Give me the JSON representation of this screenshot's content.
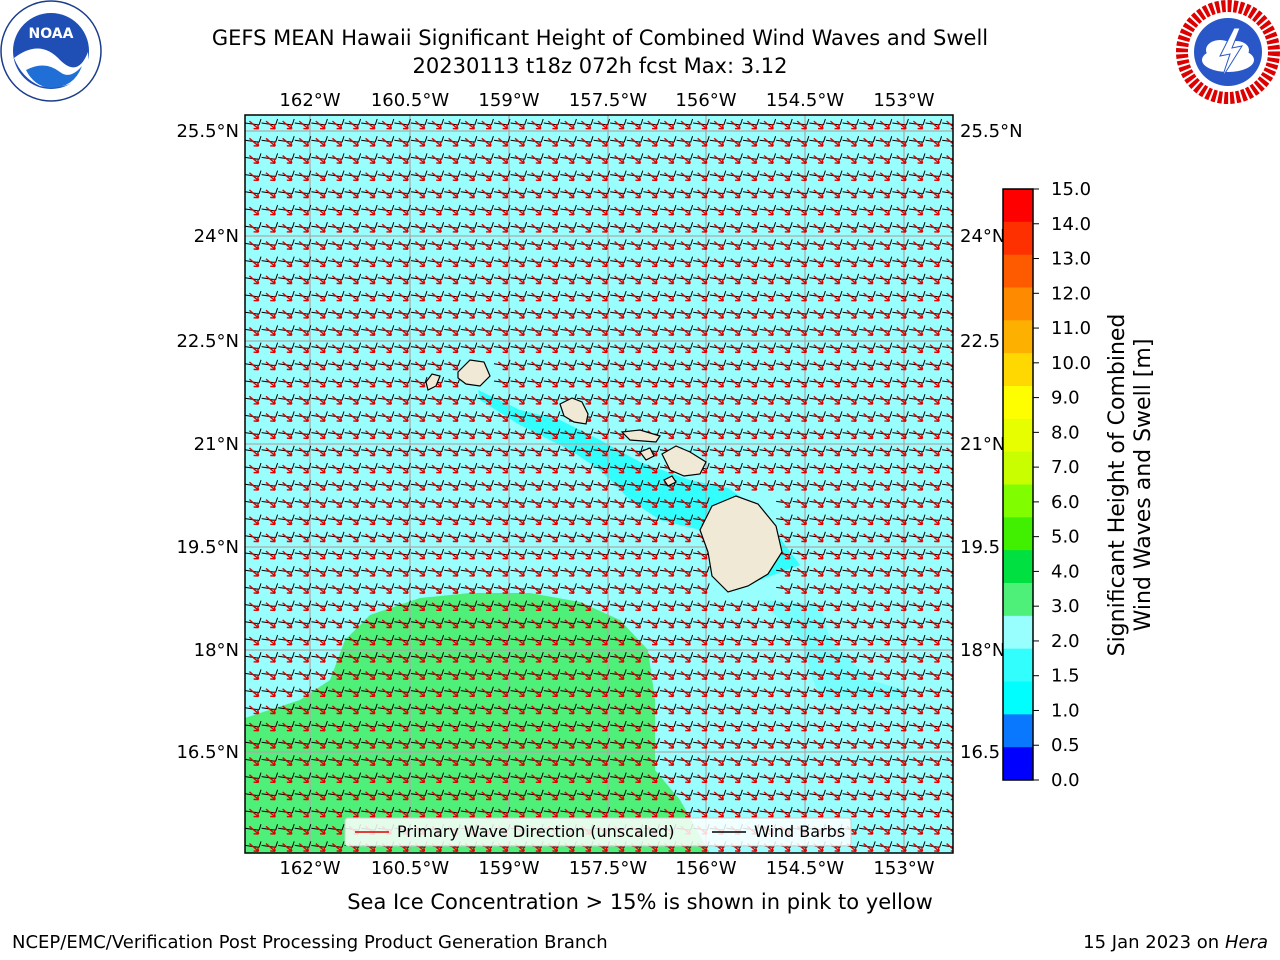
{
  "header": {
    "title_line1": "GEFS MEAN Hawaii Significant Height of Combined Wind Waves and Swell",
    "title_line2": "20230113 t18z 072h fcst   Max: 3.12"
  },
  "logos": {
    "left": {
      "name": "noaa-logo",
      "text": "NOAA",
      "ring_text": "NATIONAL OCEANIC AND ATMOSPHERIC ADMINISTRATION · U.S. DEPARTMENT OF COMMERCE"
    },
    "right": {
      "name": "nws-logo",
      "ring_text": "NATIONAL WEATHER SERVICE"
    }
  },
  "map": {
    "lon_labels": [
      "162°W",
      "160.5°W",
      "159°W",
      "157.5°W",
      "156°W",
      "154.5°W",
      "153°W"
    ],
    "lat_labels_left": [
      "25.5°N",
      "24°N",
      "22.5°N",
      "21°N",
      "19.5°N",
      "18°N",
      "16.5°N"
    ],
    "lat_labels_right": [
      "25.5°N",
      "24°N",
      "22.5",
      "21°N",
      "19.5",
      "18°N",
      "16.5"
    ],
    "legend": {
      "primary_wave": "Primary Wave Direction (unscaled)",
      "wind_barbs": "Wind Barbs"
    },
    "colors": {
      "ocean_main": "#99fefe",
      "ocean_low": "#33fefe",
      "wave_3_4": "#4ef07a",
      "land": "#efe9d6",
      "wave_arrow": "#e00000",
      "barb": "#000000"
    }
  },
  "colorbar": {
    "label_line1": "Significant Height of Combined",
    "label_line2": "Wind Waves and Swell [m]",
    "ticks": [
      "15.0",
      "14.0",
      "13.0",
      "12.0",
      "11.0",
      "10.0",
      "9.0",
      "8.0",
      "7.0",
      "6.0",
      "5.0",
      "4.0",
      "3.0",
      "2.0",
      "1.5",
      "1.0",
      "0.5",
      "0.0"
    ],
    "bands": [
      "#fe0000",
      "#fe3000",
      "#fe5a00",
      "#fe8a00",
      "#feb000",
      "#fed800",
      "#fefe00",
      "#e6fe00",
      "#c8fe00",
      "#80fe00",
      "#40f000",
      "#00e040",
      "#4ef07a",
      "#99fefe",
      "#33fefe",
      "#00fefe",
      "#0a78fe",
      "#0000fe"
    ]
  },
  "subtitle": "Sea Ice Concentration > 15% is shown in pink to yellow",
  "footer": {
    "left": "NCEP/EMC/Verification Post Processing Product Generation Branch",
    "right_date": "15 Jan 2023 on ",
    "right_host": "Hera"
  }
}
